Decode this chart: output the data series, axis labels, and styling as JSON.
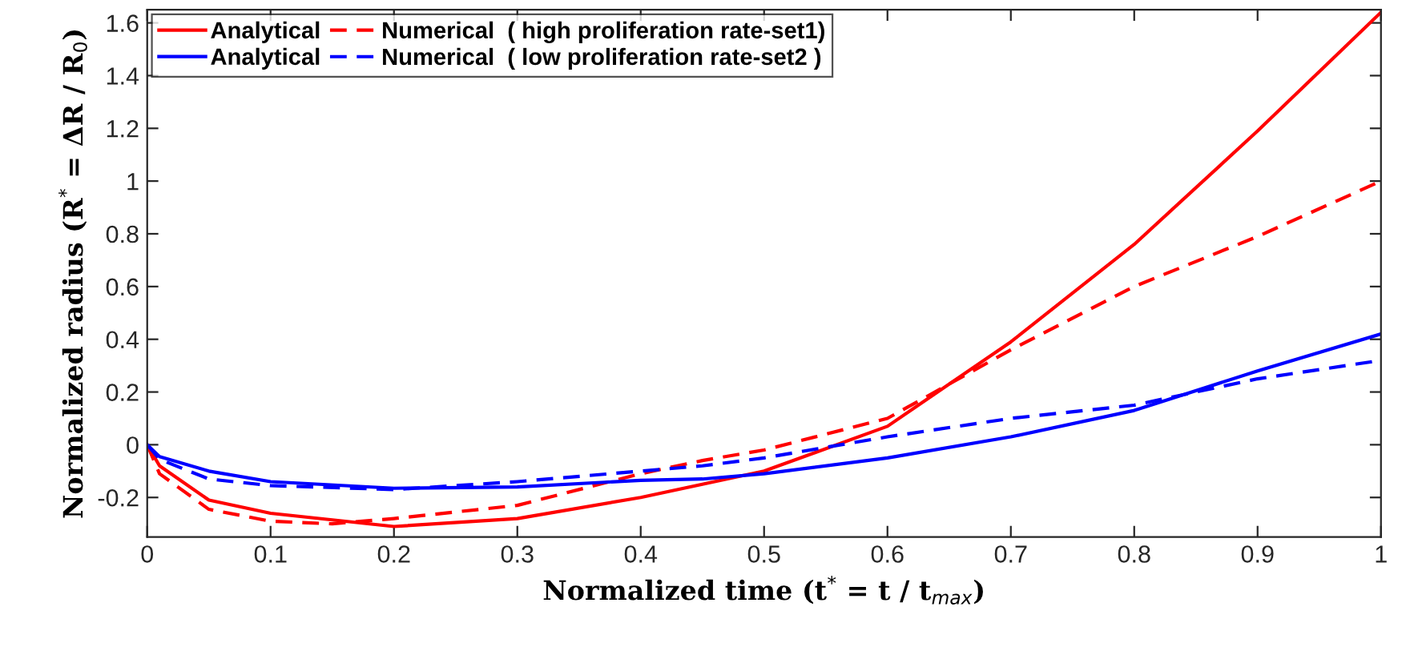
{
  "chart_data": {
    "type": "line",
    "xlabel": "Normalized time (t$^{*}$ = t / t$_{max}$)",
    "ylabel": "Normalized radius (R$^{*}$ = ΔR / R$_{0}$)",
    "xlim": [
      0,
      1
    ],
    "ylim": [
      -0.35,
      1.65
    ],
    "xticks": [
      0,
      0.1,
      0.2,
      0.3,
      0.4,
      0.5,
      0.6,
      0.7,
      0.8,
      0.9,
      1
    ],
    "yticks": [
      -0.2,
      0,
      0.2,
      0.4,
      0.6,
      0.8,
      1,
      1.2,
      1.4,
      1.6
    ],
    "grid": false,
    "legend": "top left",
    "marker": "none",
    "series": [
      {
        "name": "Analytical",
        "color": "#ff0000",
        "line_style": "solid",
        "x": [
          0,
          0.01,
          0.05,
          0.1,
          0.2,
          0.3,
          0.4,
          0.45,
          0.5,
          0.6,
          0.7,
          0.8,
          0.9,
          1.0
        ],
        "values": [
          0,
          -0.08,
          -0.21,
          -0.26,
          -0.31,
          -0.28,
          -0.2,
          -0.15,
          -0.1,
          0.07,
          0.39,
          0.76,
          1.19,
          1.64
        ]
      },
      {
        "name": "Numerical  ( high proliferation rate-set1)",
        "color": "#ff0000",
        "line_style": "dashed",
        "x": [
          0,
          0.01,
          0.05,
          0.1,
          0.15,
          0.2,
          0.3,
          0.4,
          0.45,
          0.5,
          0.6,
          0.7,
          0.8,
          0.9,
          1.0
        ],
        "values": [
          0,
          -0.11,
          -0.245,
          -0.29,
          -0.3,
          -0.28,
          -0.23,
          -0.11,
          -0.06,
          -0.02,
          0.1,
          0.36,
          0.6,
          0.79,
          1.0
        ]
      },
      {
        "name": "Analytical",
        "color": "#0000ff",
        "line_style": "solid",
        "x": [
          0,
          0.01,
          0.05,
          0.1,
          0.2,
          0.3,
          0.4,
          0.45,
          0.5,
          0.6,
          0.7,
          0.8,
          0.9,
          1.0
        ],
        "values": [
          0,
          -0.045,
          -0.1,
          -0.14,
          -0.165,
          -0.16,
          -0.135,
          -0.13,
          -0.11,
          -0.05,
          0.03,
          0.13,
          0.28,
          0.42
        ]
      },
      {
        "name": "Numerical  ( low proliferation rate-set2 )",
        "color": "#0000ff",
        "line_style": "dashed",
        "x": [
          0,
          0.01,
          0.05,
          0.1,
          0.2,
          0.3,
          0.4,
          0.45,
          0.5,
          0.6,
          0.7,
          0.8,
          0.9,
          1.0
        ],
        "values": [
          0,
          -0.055,
          -0.13,
          -0.155,
          -0.17,
          -0.14,
          -0.1,
          -0.08,
          -0.05,
          0.03,
          0.1,
          0.15,
          0.25,
          0.32
        ]
      }
    ]
  }
}
